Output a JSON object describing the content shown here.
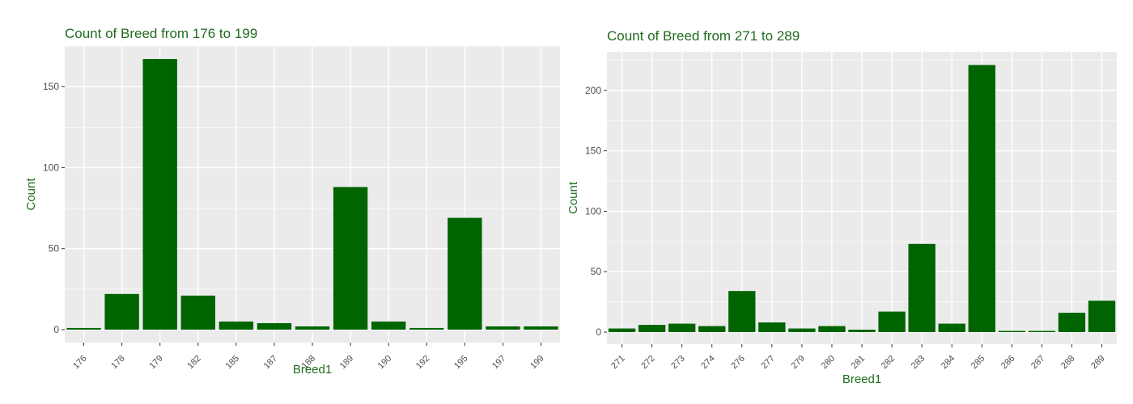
{
  "chart_data": [
    {
      "type": "bar",
      "title": "Count of Breed from 176 to 199",
      "xlabel": "Breed1",
      "ylabel": "Count",
      "ylim": [
        -8,
        175
      ],
      "yticks": [
        0,
        50,
        100,
        150
      ],
      "categories": [
        "176",
        "178",
        "179",
        "182",
        "185",
        "187",
        "188",
        "189",
        "190",
        "192",
        "195",
        "197",
        "199"
      ],
      "values": [
        1,
        22,
        167,
        21,
        5,
        4,
        2,
        88,
        5,
        1,
        69,
        2,
        2
      ],
      "grid": true,
      "legend": "none",
      "colors": {
        "bar": "#006400",
        "panel": "#ebebeb",
        "grid": "#ffffff",
        "title": "#1f6b1f",
        "axis_label": "#1f6b1f",
        "tick_label": "#4d4d4d"
      }
    },
    {
      "type": "bar",
      "title": "Count of Breed from 271 to 289",
      "xlabel": "Breed1",
      "ylabel": "Count",
      "ylim": [
        -10,
        232
      ],
      "yticks": [
        0,
        50,
        100,
        150,
        200
      ],
      "categories": [
        "271",
        "272",
        "273",
        "274",
        "276",
        "277",
        "279",
        "280",
        "281",
        "282",
        "283",
        "284",
        "285",
        "286",
        "287",
        "288",
        "289"
      ],
      "values": [
        3,
        6,
        7,
        5,
        34,
        8,
        3,
        5,
        2,
        17,
        73,
        7,
        221,
        1,
        1,
        16,
        26
      ],
      "grid": true,
      "legend": "none",
      "colors": {
        "bar": "#006400",
        "panel": "#ebebeb",
        "grid": "#ffffff",
        "title": "#1f6b1f",
        "axis_label": "#1f6b1f",
        "tick_label": "#4d4d4d"
      }
    }
  ]
}
